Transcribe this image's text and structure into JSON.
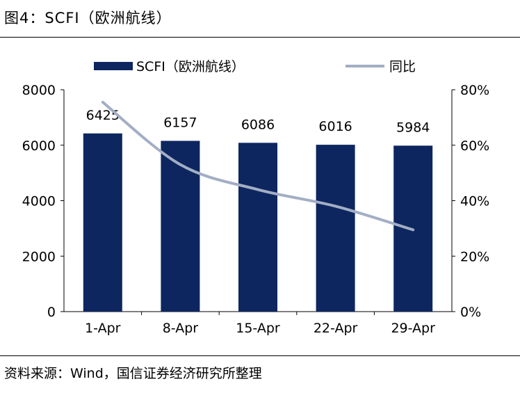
{
  "figure": {
    "title": "图4：SCFI（欧洲航线）",
    "source": "资料来源：Wind，国信证券经济研究所整理"
  },
  "chart_data": {
    "type": "bar",
    "categories": [
      "1-Apr",
      "8-Apr",
      "15-Apr",
      "22-Apr",
      "29-Apr"
    ],
    "series": [
      {
        "name": "SCFI（欧洲航线）",
        "type": "bar",
        "axis": "left",
        "values": [
          6425,
          6157,
          6086,
          6016,
          5984
        ],
        "color": "#0d2660"
      },
      {
        "name": "同比",
        "type": "line",
        "axis": "right",
        "values": [
          75.5,
          53,
          44,
          38,
          29.5
        ],
        "color": "#a2aec4"
      }
    ],
    "y_left": {
      "ylim": [
        0,
        8000
      ],
      "ticks": [
        "0",
        "2000",
        "4000",
        "6000",
        "8000"
      ]
    },
    "y_right": {
      "ylim": [
        0,
        80
      ],
      "ticks": [
        "0%",
        "20%",
        "40%",
        "60%",
        "80%"
      ]
    },
    "legend_position": "top",
    "grid": false
  }
}
